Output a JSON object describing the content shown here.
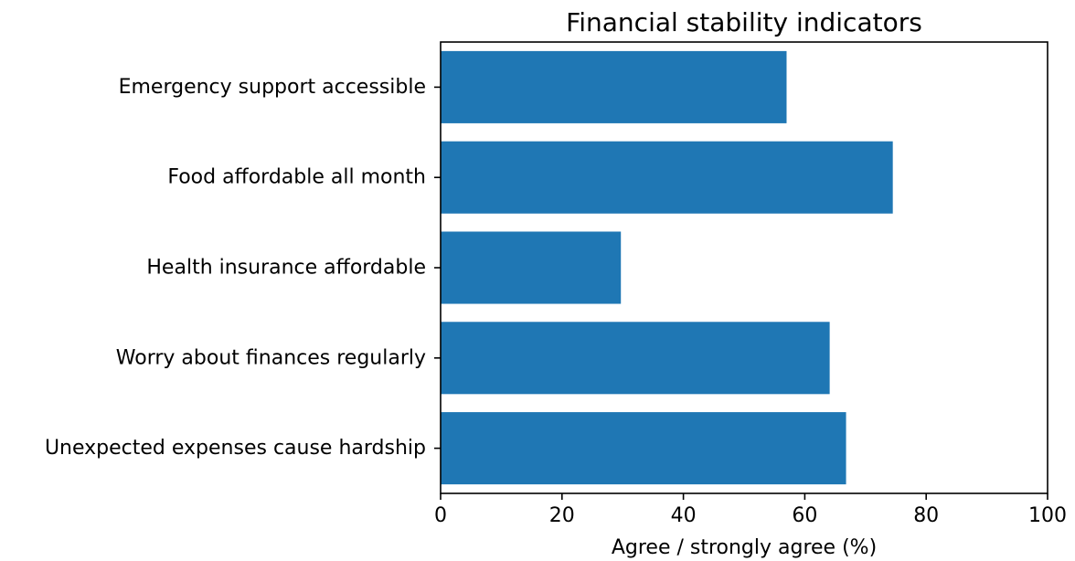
{
  "chart_data": {
    "type": "bar",
    "orientation": "horizontal",
    "title": "Financial stability indicators",
    "xlabel": "Agree / strongly agree (%)",
    "ylabel": "",
    "xlim": [
      0,
      100
    ],
    "xticks": [
      0,
      20,
      40,
      60,
      80,
      100
    ],
    "categories": [
      "Emergency support accessible",
      "Food affordable all month",
      "Health insurance affordable",
      "Worry about finances regularly",
      "Unexpected expenses cause hardship"
    ],
    "values": [
      57,
      74.5,
      29.7,
      64.1,
      66.8
    ],
    "bar_color": "#1f77b4",
    "grid": false,
    "legend": "none"
  }
}
